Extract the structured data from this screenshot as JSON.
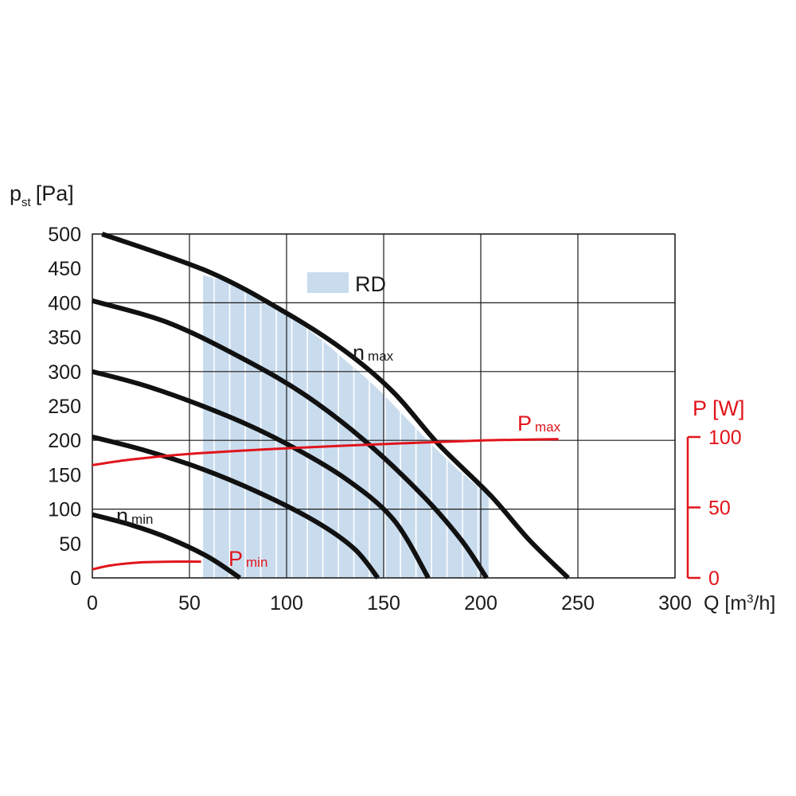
{
  "chart_data": {
    "type": "line",
    "y_axis": {
      "main": "p",
      "sub": "st",
      "unit": "[Pa]",
      "range": [
        0,
        500
      ],
      "ticks": [
        0,
        50,
        100,
        150,
        200,
        250,
        300,
        350,
        400,
        450,
        500
      ]
    },
    "x_axis": {
      "label_main": "Q [m",
      "label_sup": "3",
      "label_end": "/h]",
      "range": [
        0,
        300
      ],
      "ticks": [
        0,
        50,
        100,
        150,
        200,
        250,
        300
      ]
    },
    "y2_axis": {
      "label": "P [W]",
      "range": [
        0,
        100
      ],
      "ticks": [
        0,
        50,
        100
      ]
    },
    "grid": true,
    "colors": {
      "curve": "#111111",
      "power": "#e1141b",
      "region": "#c9dcee",
      "grid": "#1a1a1a"
    },
    "legend": {
      "label": "RD",
      "placement": "top-center"
    },
    "rd_region": {
      "x_from": 57,
      "x_to": 204,
      "upper": [
        [
          57,
          440
        ],
        [
          70,
          430
        ],
        [
          85,
          410
        ],
        [
          100,
          383
        ],
        [
          115,
          353
        ],
        [
          130,
          317
        ],
        [
          145,
          280
        ],
        [
          160,
          237
        ],
        [
          175,
          193
        ],
        [
          190,
          153
        ],
        [
          204,
          120
        ]
      ]
    },
    "pressure_curves": [
      {
        "name": "n max",
        "points": [
          [
            5,
            500
          ],
          [
            60,
            445
          ],
          [
            100,
            385
          ],
          [
            130,
            330
          ],
          [
            155,
            270
          ],
          [
            178,
            195
          ],
          [
            205,
            120
          ],
          [
            225,
            55
          ],
          [
            245,
            0
          ]
        ]
      },
      {
        "name": "",
        "points": [
          [
            0,
            403
          ],
          [
            40,
            370
          ],
          [
            80,
            315
          ],
          [
            110,
            265
          ],
          [
            140,
            200
          ],
          [
            170,
            120
          ],
          [
            190,
            55
          ],
          [
            203,
            0
          ]
        ]
      },
      {
        "name": "",
        "points": [
          [
            0,
            300
          ],
          [
            30,
            277
          ],
          [
            70,
            235
          ],
          [
            100,
            195
          ],
          [
            130,
            145
          ],
          [
            155,
            85
          ],
          [
            173,
            0
          ]
        ]
      },
      {
        "name": "",
        "points": [
          [
            0,
            205
          ],
          [
            25,
            187
          ],
          [
            55,
            160
          ],
          [
            85,
            125
          ],
          [
            115,
            82
          ],
          [
            135,
            42
          ],
          [
            147,
            0
          ]
        ]
      },
      {
        "name": "n min",
        "points": [
          [
            0,
            92
          ],
          [
            20,
            77
          ],
          [
            40,
            57
          ],
          [
            60,
            30
          ],
          [
            76,
            0
          ]
        ]
      }
    ],
    "power_curves": [
      {
        "name": "P max",
        "points": [
          [
            0,
            80
          ],
          [
            20,
            84
          ],
          [
            50,
            88
          ],
          [
            100,
            92
          ],
          [
            150,
            95
          ],
          [
            200,
            97.5
          ],
          [
            240,
            98.5
          ]
        ]
      },
      {
        "name": "P min",
        "points": [
          [
            0,
            6
          ],
          [
            10,
            9
          ],
          [
            25,
            11
          ],
          [
            40,
            11.5
          ],
          [
            56,
            11.5
          ]
        ]
      }
    ],
    "annotations": {
      "n_max": {
        "main": "n",
        "sub": "max"
      },
      "n_min": {
        "main": "n",
        "sub": "min"
      },
      "p_max": {
        "main": "P",
        "sub": "max"
      },
      "p_min": {
        "main": "P",
        "sub": "min"
      }
    }
  }
}
